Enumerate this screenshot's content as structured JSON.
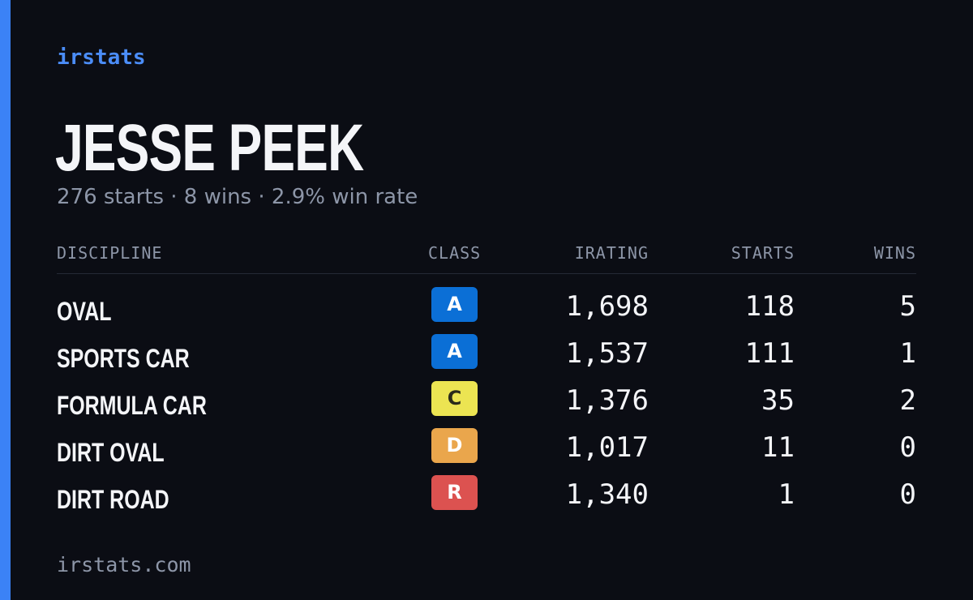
{
  "brand": "irstats",
  "driver": {
    "name": "JESSE PEEK",
    "summary": "276 starts · 8 wins · 2.9% win rate"
  },
  "table": {
    "headers": {
      "discipline": "DISCIPLINE",
      "class": "CLASS",
      "irating": "IRATING",
      "starts": "STARTS",
      "wins": "WINS"
    },
    "rows": [
      {
        "discipline": "OVAL",
        "class": "A",
        "class_bg": "#0b6fd6",
        "class_fg": "#ffffff",
        "irating": "1,698",
        "starts": "118",
        "wins": "5"
      },
      {
        "discipline": "SPORTS CAR",
        "class": "A",
        "class_bg": "#0b6fd6",
        "class_fg": "#ffffff",
        "irating": "1,537",
        "starts": "111",
        "wins": "1"
      },
      {
        "discipline": "FORMULA CAR",
        "class": "C",
        "class_bg": "#ece452",
        "class_fg": "#2a2a1a",
        "irating": "1,376",
        "starts": "35",
        "wins": "2"
      },
      {
        "discipline": "DIRT OVAL",
        "class": "D",
        "class_bg": "#eaa64c",
        "class_fg": "#ffffff",
        "irating": "1,017",
        "starts": "11",
        "wins": "0"
      },
      {
        "discipline": "DIRT ROAD",
        "class": "R",
        "class_bg": "#dc5250",
        "class_fg": "#ffffff",
        "irating": "1,340",
        "starts": "1",
        "wins": "0"
      }
    ]
  },
  "footer": "irstats.com",
  "colors": {
    "accent": "#3b82f6",
    "background": "#0b0d14",
    "muted_text": "#8d96a8"
  }
}
